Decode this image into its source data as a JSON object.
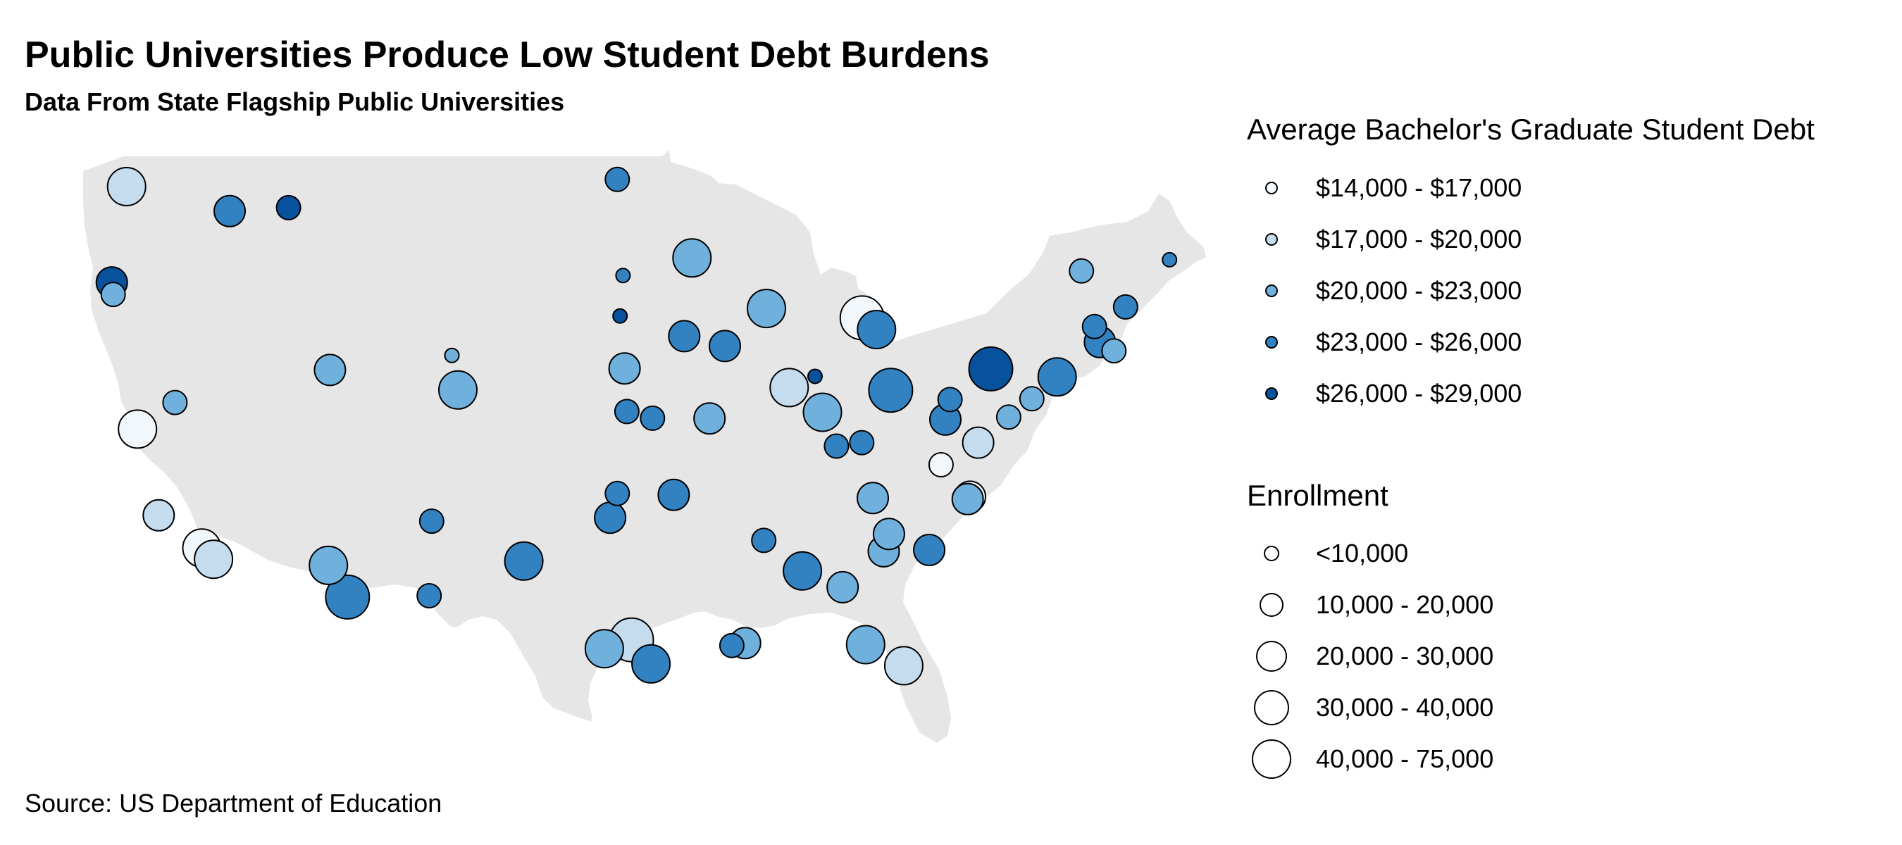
{
  "title": "Public Universities Produce Low Student Debt Burdens",
  "subtitle": "Data From State Flagship Public Universities",
  "source": "Source: US Department of Education",
  "colors": {
    "land": "#e6e6e6",
    "outline": "#000000",
    "debt_scale": [
      "#f2f7fc",
      "#c5dbee",
      "#6fb0dc",
      "#3282c2",
      "#08519c"
    ]
  },
  "legend_debt": {
    "title": "Average Bachelor's Graduate Student Debt",
    "items": [
      {
        "label": "$14,000 - $17,000"
      },
      {
        "label": "$17,000 - $20,000"
      },
      {
        "label": "$20,000 - $23,000"
      },
      {
        "label": "$23,000 - $26,000"
      },
      {
        "label": "$26,000 - $29,000"
      }
    ]
  },
  "legend_enrollment": {
    "title": "Enrollment",
    "items": [
      {
        "label": "<10,000"
      },
      {
        "label": "10,000 - 20,000"
      },
      {
        "label": "20,000 - 30,000"
      },
      {
        "label": "30,000 - 40,000"
      },
      {
        "label": "40,000 - 75,000"
      }
    ]
  },
  "map_data": {
    "points": [
      {
        "lat": 47.65,
        "lon": -122.31,
        "debt_class": 1,
        "enroll_class": 3
      },
      {
        "lat": 46.73,
        "lon": -117.01,
        "debt_class": 3,
        "enroll_class": 2
      },
      {
        "lat": 46.86,
        "lon": -113.98,
        "debt_class": 4,
        "enroll_class": 1
      },
      {
        "lat": 44.05,
        "lon": -123.07,
        "debt_class": 4,
        "enroll_class": 2
      },
      {
        "lat": 43.6,
        "lon": -123.0,
        "debt_class": 2,
        "enroll_class": 1
      },
      {
        "lat": 39.54,
        "lon": -119.82,
        "debt_class": 2,
        "enroll_class": 1
      },
      {
        "lat": 38.54,
        "lon": -121.75,
        "debt_class": 0,
        "enroll_class": 3
      },
      {
        "lat": 35.3,
        "lon": -120.66,
        "debt_class": 1,
        "enroll_class": 2
      },
      {
        "lat": 34.07,
        "lon": -118.44,
        "debt_class": 0,
        "enroll_class": 3
      },
      {
        "lat": 33.65,
        "lon": -117.84,
        "debt_class": 1,
        "enroll_class": 3
      },
      {
        "lat": 32.23,
        "lon": -110.95,
        "debt_class": 3,
        "enroll_class": 4
      },
      {
        "lat": 33.42,
        "lon": -111.93,
        "debt_class": 2,
        "enroll_class": 3
      },
      {
        "lat": 40.76,
        "lon": -111.85,
        "debt_class": 2,
        "enroll_class": 2
      },
      {
        "lat": 41.31,
        "lon": -105.58,
        "debt_class": 2,
        "enroll_class": 0
      },
      {
        "lat": 40.01,
        "lon": -105.27,
        "debt_class": 2,
        "enroll_class": 3
      },
      {
        "lat": 35.08,
        "lon": -106.62,
        "debt_class": 3,
        "enroll_class": 1
      },
      {
        "lat": 32.28,
        "lon": -106.75,
        "debt_class": 3,
        "enroll_class": 1
      },
      {
        "lat": 33.58,
        "lon": -101.88,
        "debt_class": 3,
        "enroll_class": 3
      },
      {
        "lat": 47.92,
        "lon": -97.07,
        "debt_class": 3,
        "enroll_class": 1
      },
      {
        "lat": 44.31,
        "lon": -96.78,
        "debt_class": 3,
        "enroll_class": 0
      },
      {
        "lat": 42.79,
        "lon": -96.93,
        "debt_class": 4,
        "enroll_class": 0
      },
      {
        "lat": 40.82,
        "lon": -96.7,
        "debt_class": 2,
        "enroll_class": 2
      },
      {
        "lat": 39.2,
        "lon": -96.58,
        "debt_class": 3,
        "enroll_class": 1
      },
      {
        "lat": 38.95,
        "lon": -95.26,
        "debt_class": 3,
        "enroll_class": 1
      },
      {
        "lat": 36.12,
        "lon": -97.07,
        "debt_class": 3,
        "enroll_class": 1
      },
      {
        "lat": 35.21,
        "lon": -97.44,
        "debt_class": 3,
        "enroll_class": 2
      },
      {
        "lat": 30.62,
        "lon": -96.34,
        "debt_class": 1,
        "enroll_class": 4
      },
      {
        "lat": 30.29,
        "lon": -97.74,
        "debt_class": 2,
        "enroll_class": 3
      },
      {
        "lat": 29.72,
        "lon": -95.34,
        "debt_class": 3,
        "enroll_class": 3
      },
      {
        "lat": 44.97,
        "lon": -93.23,
        "debt_class": 2,
        "enroll_class": 3
      },
      {
        "lat": 41.66,
        "lon": -91.54,
        "debt_class": 3,
        "enroll_class": 2
      },
      {
        "lat": 42.03,
        "lon": -93.63,
        "debt_class": 3,
        "enroll_class": 2
      },
      {
        "lat": 43.07,
        "lon": -89.4,
        "debt_class": 2,
        "enroll_class": 3
      },
      {
        "lat": 38.94,
        "lon": -92.33,
        "debt_class": 2,
        "enroll_class": 2
      },
      {
        "lat": 36.07,
        "lon": -94.17,
        "debt_class": 3,
        "enroll_class": 2
      },
      {
        "lat": 30.41,
        "lon": -91.18,
        "debt_class": 3,
        "enroll_class": 1
      },
      {
        "lat": 30.5,
        "lon": -90.5,
        "debt_class": 2,
        "enroll_class": 2
      },
      {
        "lat": 34.36,
        "lon": -89.54,
        "debt_class": 3,
        "enroll_class": 1
      },
      {
        "lat": 40.1,
        "lon": -88.23,
        "debt_class": 1,
        "enroll_class": 3
      },
      {
        "lat": 39.17,
        "lon": -86.52,
        "debt_class": 2,
        "enroll_class": 3
      },
      {
        "lat": 42.28,
        "lon": -83.74,
        "debt_class": 3,
        "enroll_class": 3
      },
      {
        "lat": 42.72,
        "lon": -84.48,
        "debt_class": 0,
        "enroll_class": 4
      },
      {
        "lat": 40.52,
        "lon": -86.9,
        "debt_class": 4,
        "enroll_class": 0
      },
      {
        "lat": 40.0,
        "lon": -83.01,
        "debt_class": 3,
        "enroll_class": 4
      },
      {
        "lat": 38.03,
        "lon": -84.5,
        "debt_class": 3,
        "enroll_class": 1
      },
      {
        "lat": 37.9,
        "lon": -85.8,
        "debt_class": 3,
        "enroll_class": 1
      },
      {
        "lat": 35.95,
        "lon": -83.93,
        "debt_class": 2,
        "enroll_class": 2
      },
      {
        "lat": 33.21,
        "lon": -87.55,
        "debt_class": 3,
        "enroll_class": 3
      },
      {
        "lat": 32.6,
        "lon": -85.48,
        "debt_class": 2,
        "enroll_class": 2
      },
      {
        "lat": 33.95,
        "lon": -83.37,
        "debt_class": 2,
        "enroll_class": 2
      },
      {
        "lat": 34.6,
        "lon": -83.1,
        "debt_class": 2,
        "enroll_class": 2
      },
      {
        "lat": 34.0,
        "lon": -81.03,
        "debt_class": 3,
        "enroll_class": 2
      },
      {
        "lat": 30.44,
        "lon": -84.3,
        "debt_class": 2,
        "enroll_class": 3
      },
      {
        "lat": 29.65,
        "lon": -82.34,
        "debt_class": 1,
        "enroll_class": 3
      },
      {
        "lat": 39.65,
        "lon": -79.96,
        "debt_class": 3,
        "enroll_class": 1
      },
      {
        "lat": 38.9,
        "lon": -80.2,
        "debt_class": 3,
        "enroll_class": 2
      },
      {
        "lat": 40.8,
        "lon": -77.86,
        "debt_class": 4,
        "enroll_class": 4
      },
      {
        "lat": 38.03,
        "lon": -78.51,
        "debt_class": 1,
        "enroll_class": 2
      },
      {
        "lat": 37.2,
        "lon": -80.42,
        "debt_class": 0,
        "enroll_class": 1
      },
      {
        "lat": 36.0,
        "lon": -78.93,
        "debt_class": 0,
        "enroll_class": 2
      },
      {
        "lat": 35.91,
        "lon": -79.05,
        "debt_class": 2,
        "enroll_class": 2
      },
      {
        "lat": 38.99,
        "lon": -76.94,
        "debt_class": 2,
        "enroll_class": 1
      },
      {
        "lat": 39.68,
        "lon": -75.75,
        "debt_class": 2,
        "enroll_class": 1
      },
      {
        "lat": 40.5,
        "lon": -74.45,
        "debt_class": 3,
        "enroll_class": 3
      },
      {
        "lat": 41.81,
        "lon": -72.25,
        "debt_class": 3,
        "enroll_class": 2
      },
      {
        "lat": 41.48,
        "lon": -71.53,
        "debt_class": 2,
        "enroll_class": 1
      },
      {
        "lat": 42.39,
        "lon": -72.53,
        "debt_class": 3,
        "enroll_class": 1
      },
      {
        "lat": 43.13,
        "lon": -70.93,
        "debt_class": 3,
        "enroll_class": 1
      },
      {
        "lat": 44.48,
        "lon": -73.2,
        "debt_class": 2,
        "enroll_class": 1
      },
      {
        "lat": 44.9,
        "lon": -68.67,
        "debt_class": 3,
        "enroll_class": 0
      }
    ]
  }
}
